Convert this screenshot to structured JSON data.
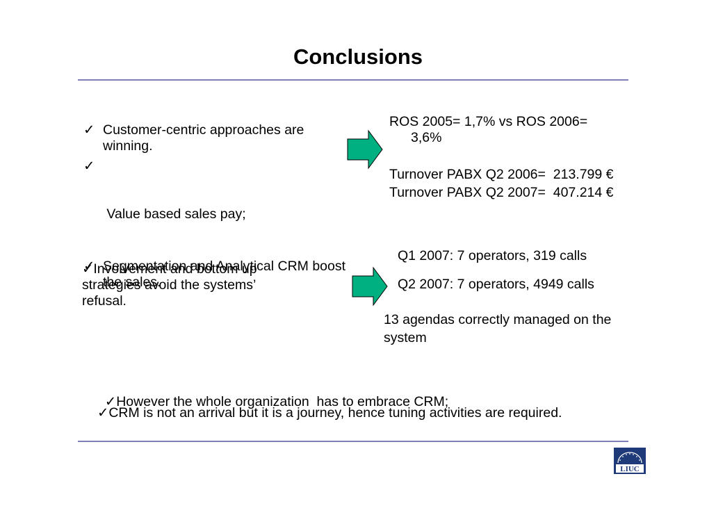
{
  "slide": {
    "title": "Conclusions"
  },
  "left_bullets": [
    {
      "check": "✓",
      "text": "Customer-centric approaches are winning."
    },
    {
      "check": "✓",
      "text": " Value based sales pay;"
    },
    {
      "check": "✓",
      "text": "Segmentation and Analytical CRM boost the sales."
    }
  ],
  "right_top": {
    "ros_line1": "ROS 2005= 1,7% vs ROS 2006=",
    "ros_line2": "3,6%",
    "turnover_2006": "Turnover PABX Q2 2006=  213.799 €",
    "turnover_2007": "Turnover PABX Q2 2007=  407.214 €"
  },
  "left_middle": {
    "check": "✓",
    "line1": "Involvement and bottom up",
    "line2": "strategies avoid the systems’",
    "line3": "refusal."
  },
  "right_middle": {
    "q1": "Q1 2007: 7 operators, 319 calls",
    "q2": "Q2 2007: 7 operators, 4949 calls",
    "agendas_line1": "13 agendas correctly managed on the",
    "agendas_line2": "system"
  },
  "bottom_notes": [
    {
      "check": "✓",
      "text": "However the whole organization  has to embrace CRM;"
    },
    {
      "check": "✓",
      "text": "CRM is not an arrival but it is a journey, hence tuning activities are required."
    }
  ],
  "logo": {
    "text": "LIUC",
    "color": "#1f3a78"
  },
  "colors": {
    "arrow_fill": "#00b080",
    "arrow_stroke": "#000000",
    "rule": "#8080b8"
  }
}
